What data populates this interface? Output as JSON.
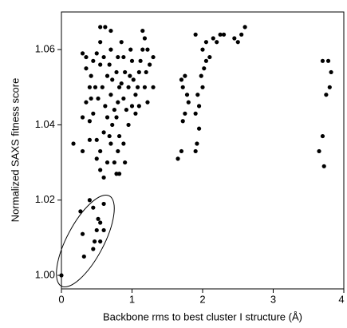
{
  "chart_data": {
    "type": "scatter",
    "x_label": "Backbone rms to best cluster I structure (Å)",
    "y_label": "Normalized SAXS fitness score",
    "xlim": [
      0,
      4
    ],
    "ylim": [
      0.9964,
      1.07
    ],
    "xticks": [
      0,
      1,
      2,
      3,
      4
    ],
    "yticks": [
      {
        "value": 1.0,
        "label": "1.00"
      },
      {
        "value": 1.02,
        "label": "1.02"
      },
      {
        "value": 1.04,
        "label": "1.04"
      },
      {
        "value": 1.06,
        "label": "1.06"
      }
    ],
    "color": "#000000",
    "x": [
      0,
      0.27,
      0.3,
      0.32,
      0.4,
      0.45,
      0.5,
      0.55,
      0.47,
      0.55,
      0.6,
      0.52,
      0.45,
      0.6,
      0.17,
      0.3,
      0.3,
      0.35,
      0.35,
      0.4,
      0.42,
      0.45,
      0.4,
      0.5,
      0.5,
      0.55,
      0.55,
      0.6,
      0.6,
      0.62,
      0.65,
      0.55,
      0.5,
      0.45,
      0.42,
      0.48,
      0.52,
      0.58,
      0.6,
      0.55,
      0.55,
      0.62,
      0.7,
      0.7,
      0.68,
      0.72,
      0.7,
      0.75,
      0.72,
      0.7,
      0.75,
      0.78,
      0.82,
      0.8,
      0.82,
      0.78,
      0.8,
      0.82,
      0.78,
      0.8,
      0.85,
      0.88,
      0.9,
      0.85,
      0.88,
      0.92,
      0.95,
      0.97,
      1.0,
      0.98,
      1.02,
      1.05,
      1.0,
      1.05,
      1.1,
      1.08,
      1.1,
      1.12,
      1.15,
      1.2,
      1.18,
      1.22,
      1.25,
      1.22,
      1.18,
      1.15,
      1.3,
      1.3,
      0.65,
      0.65,
      0.68,
      0.4,
      0.35,
      0.3,
      0.88,
      0.9,
      0.95,
      1.65,
      1.7,
      1.72,
      1.75,
      1.8,
      1.75,
      1.72,
      1.7,
      1.78,
      1.9,
      1.92,
      1.95,
      1.9,
      1.95,
      1.93,
      2.0,
      1.98,
      2.02,
      2.05,
      2.1,
      2.0,
      2.05,
      2.15,
      2.2,
      2.25,
      2.3,
      1.9,
      2.45,
      2.5,
      2.55,
      2.6,
      3.65,
      3.7,
      3.72,
      3.75,
      3.8,
      3.82,
      3.78,
      3.7
    ],
    "y": [
      1.0,
      1.017,
      1.011,
      1.005,
      1.02,
      1.018,
      1.012,
      1.014,
      1.009,
      1.009,
      1.012,
      1.015,
      1.007,
      1.019,
      1.035,
      1.033,
      1.059,
      1.058,
      1.055,
      1.05,
      1.047,
      1.043,
      1.041,
      1.036,
      1.031,
      1.028,
      1.033,
      1.026,
      1.038,
      1.045,
      1.053,
      1.056,
      1.059,
      1.057,
      1.053,
      1.05,
      1.047,
      1.05,
      1.058,
      1.062,
      1.066,
      1.066,
      1.065,
      1.06,
      1.056,
      1.052,
      1.048,
      1.044,
      1.04,
      1.035,
      1.03,
      1.027,
      1.027,
      1.033,
      1.037,
      1.042,
      1.046,
      1.05,
      1.054,
      1.058,
      1.062,
      1.058,
      1.054,
      1.051,
      1.047,
      1.044,
      1.05,
      1.053,
      1.057,
      1.06,
      1.052,
      1.048,
      1.045,
      1.043,
      1.045,
      1.05,
      1.054,
      1.057,
      1.06,
      1.054,
      1.05,
      1.046,
      1.056,
      1.06,
      1.063,
      1.065,
      1.058,
      1.05,
      1.042,
      1.03,
      1.037,
      1.036,
      1.046,
      1.042,
      1.035,
      1.03,
      1.04,
      1.031,
      1.033,
      1.041,
      1.043,
      1.046,
      1.053,
      1.05,
      1.052,
      1.048,
      1.033,
      1.035,
      1.039,
      1.043,
      1.045,
      1.048,
      1.05,
      1.053,
      1.055,
      1.057,
      1.058,
      1.06,
      1.062,
      1.063,
      1.062,
      1.064,
      1.064,
      1.064,
      1.063,
      1.062,
      1.064,
      1.066,
      1.033,
      1.037,
      1.029,
      1.048,
      1.05,
      1.054,
      1.057,
      1.057
    ]
  }
}
